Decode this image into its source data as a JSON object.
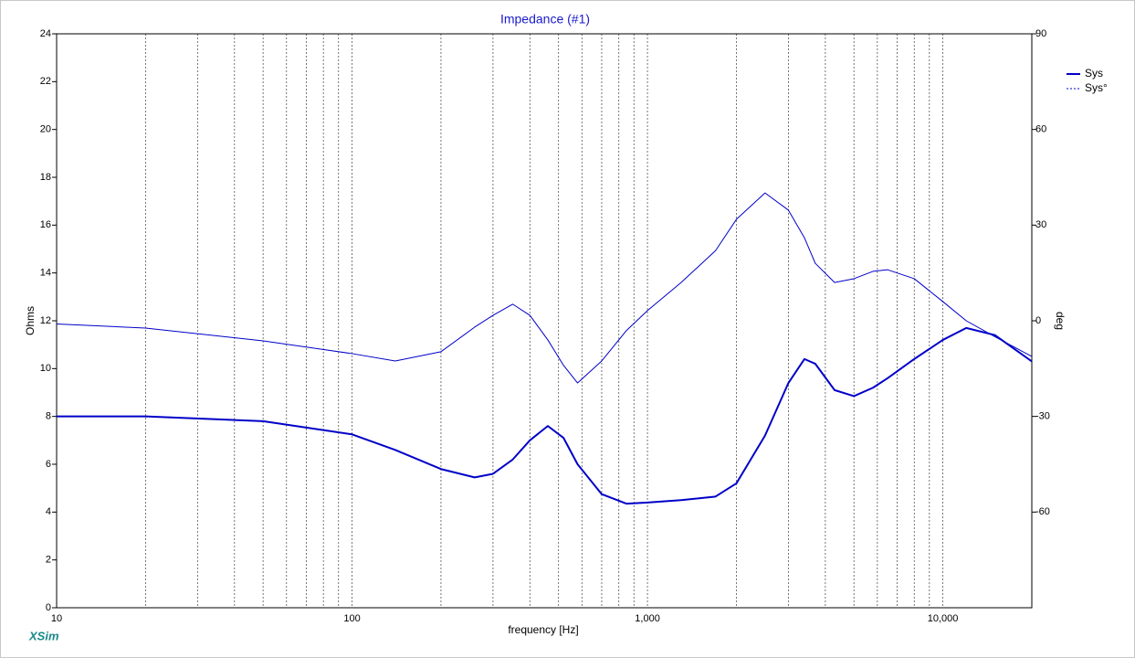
{
  "chart_data": {
    "type": "line",
    "title": "Impedance (#1)",
    "x_label": "frequency [Hz]",
    "y_label": "Ohms",
    "y2_label": "deg",
    "watermark": "XSim",
    "x_scale": "log",
    "xlim": [
      10,
      20000
    ],
    "xticks": [
      10,
      100,
      {
        "value": 1000,
        "label": "1,000"
      },
      {
        "value": 10000,
        "label": "10,000"
      }
    ],
    "xminor_ticks": [
      20,
      30,
      40,
      50,
      60,
      70,
      80,
      90,
      200,
      300,
      400,
      500,
      600,
      700,
      800,
      900,
      2000,
      3000,
      4000,
      5000,
      6000,
      7000,
      8000,
      9000
    ],
    "ylim": [
      0,
      24
    ],
    "yticks": [
      0,
      2,
      4,
      6,
      8,
      10,
      12,
      14,
      16,
      18,
      20,
      22,
      24
    ],
    "y2lim": [
      -90,
      90
    ],
    "y2ticks": [
      -60,
      -30,
      0,
      30,
      60,
      90
    ],
    "grid": "x",
    "legend": "right-top",
    "x": [
      10,
      20,
      50,
      100,
      140,
      200,
      260,
      300,
      350,
      400,
      460,
      520,
      580,
      700,
      850,
      1000,
      1300,
      1700,
      2000,
      2500,
      3000,
      3400,
      3700,
      4300,
      5000,
      5800,
      6500,
      8000,
      10000,
      12000,
      15000,
      20000
    ],
    "series": [
      {
        "name": "Sys",
        "color": "#0000c8",
        "line_width": 2,
        "line_style": "solid",
        "values": [
          8.0,
          8.0,
          7.8,
          7.25,
          6.6,
          5.8,
          5.45,
          5.6,
          6.2,
          7.0,
          7.6,
          7.1,
          6.0,
          4.75,
          4.35,
          4.4,
          4.5,
          4.65,
          5.2,
          7.2,
          9.4,
          10.4,
          10.2,
          9.1,
          8.85,
          9.2,
          9.6,
          10.4,
          11.2,
          11.7,
          11.4,
          10.3
        ]
      },
      {
        "name": "Sys°",
        "color": "#0000c8",
        "line_width": 1,
        "line_style": "dashed",
        "axis": "y2",
        "values": [
          -1,
          -2.3,
          -6.3,
          -10.3,
          -12.6,
          -9.7,
          -2,
          1.7,
          5.2,
          1.7,
          -6,
          -14,
          -19.5,
          -12.6,
          -3,
          3.2,
          12,
          22,
          31.8,
          40.1,
          34.7,
          26,
          18,
          12,
          13.2,
          15.5,
          16,
          13.2,
          6,
          0,
          -5,
          -11.2
        ]
      }
    ]
  }
}
